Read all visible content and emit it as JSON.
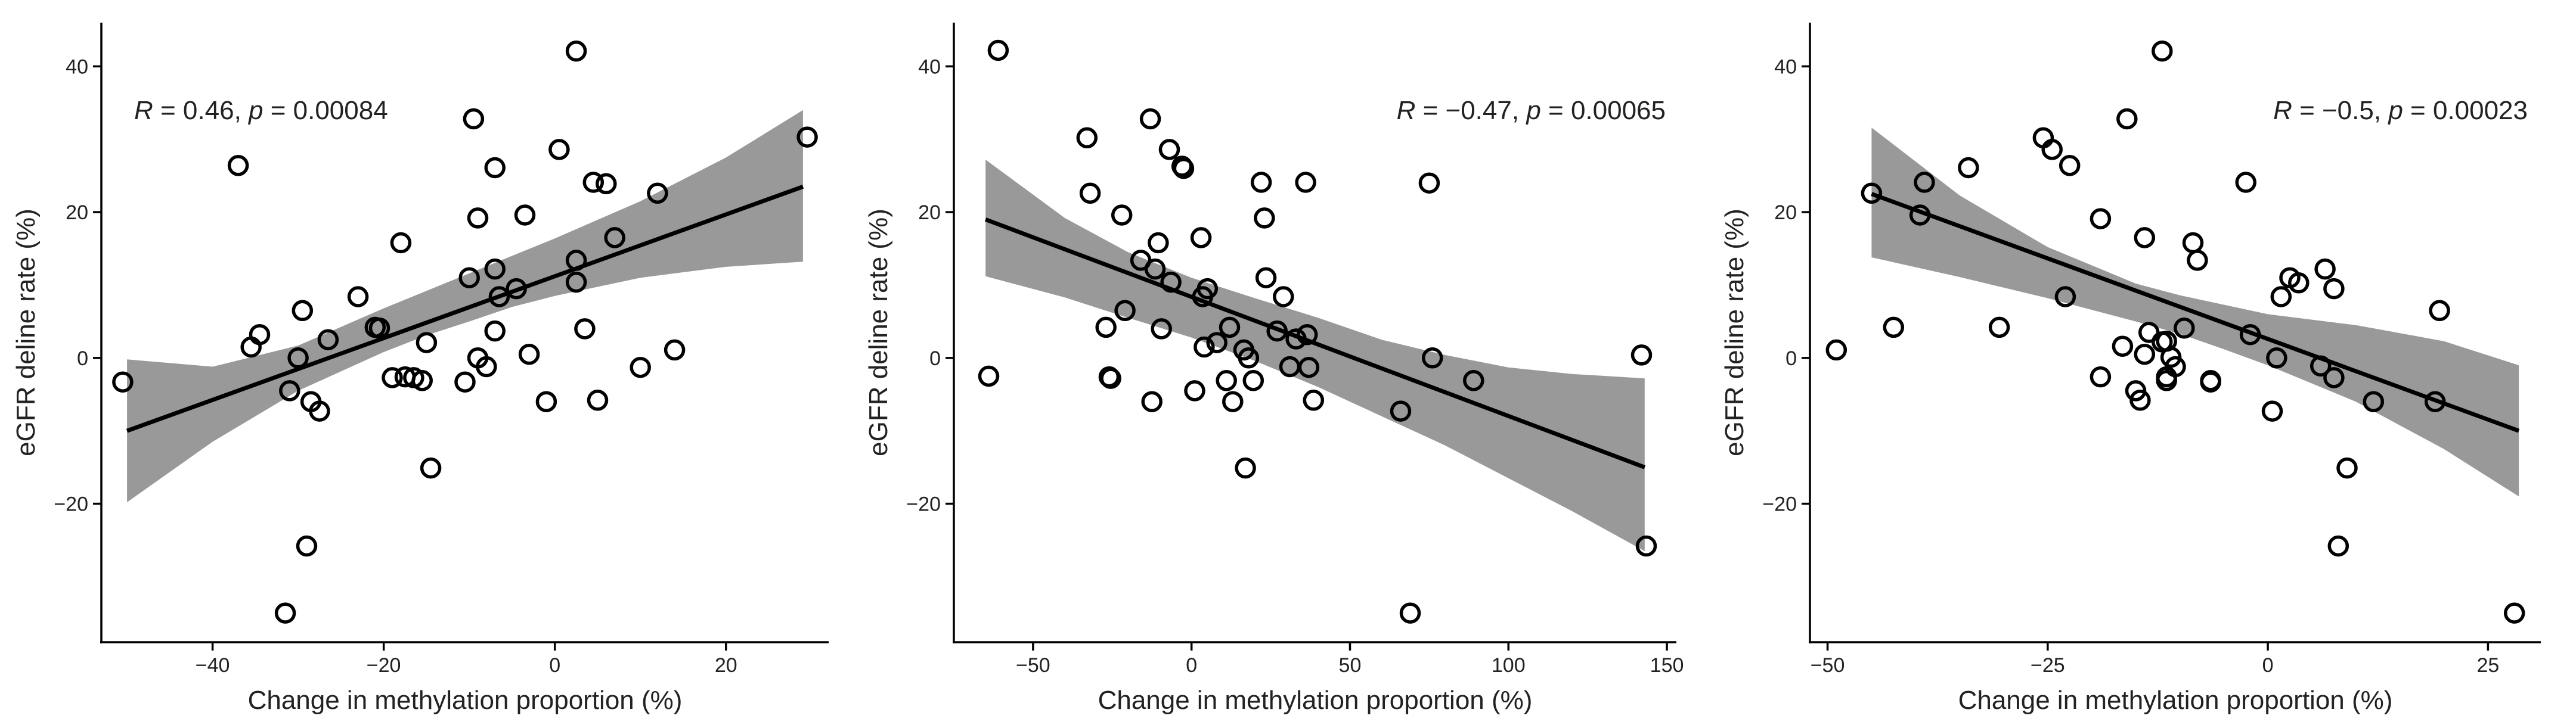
{
  "colors": {
    "band": "#999999",
    "line": "#000000",
    "point_stroke": "#000000",
    "background": "#ffffff"
  },
  "chart_data": [
    {
      "type": "scatter",
      "xlabel": "Change in methylation proportion (%)",
      "ylabel": "eGFR deline rate (%)",
      "annotation": {
        "R": "0.46",
        "p": "0.00084"
      },
      "xlim": [
        -53,
        32
      ],
      "ylim": [
        -39,
        46
      ],
      "xticks": [
        -40,
        -20,
        0,
        20
      ],
      "yticks": [
        -20,
        0,
        20,
        40
      ],
      "xtick_labels": [
        "−40",
        "−20",
        "0",
        "20"
      ],
      "ytick_labels": [
        "−20",
        "0",
        "20",
        "40"
      ],
      "fit": {
        "x0": -50,
        "y0": -10,
        "x1": 29,
        "y1": 23.5
      },
      "band": [
        [
          -50,
          -19.8
        ],
        [
          -40,
          -11.5
        ],
        [
          -30,
          -4.5
        ],
        [
          -20,
          0.8
        ],
        [
          -15,
          3.1
        ],
        [
          -10,
          5
        ],
        [
          -5,
          7
        ],
        [
          0,
          8.5
        ],
        [
          10,
          11
        ],
        [
          20,
          12.5
        ],
        [
          29,
          13.2
        ],
        [
          29,
          34
        ],
        [
          20,
          27.5
        ],
        [
          10,
          21.5
        ],
        [
          0,
          16.4
        ],
        [
          -5,
          14
        ],
        [
          -10,
          11.6
        ],
        [
          -15,
          9.2
        ],
        [
          -20,
          6.8
        ],
        [
          -30,
          1.7
        ],
        [
          -40,
          -1.2
        ],
        [
          -50,
          -0.2
        ]
      ],
      "points": [
        {
          "x": -50.5,
          "y": -3.3
        },
        {
          "x": -37,
          "y": 26.4
        },
        {
          "x": -35.5,
          "y": 1.5
        },
        {
          "x": -34.5,
          "y": 3.2
        },
        {
          "x": -31.5,
          "y": -35
        },
        {
          "x": -31,
          "y": -4.5
        },
        {
          "x": -30,
          "y": 0
        },
        {
          "x": -29.5,
          "y": 6.5
        },
        {
          "x": -29,
          "y": -25.8
        },
        {
          "x": -28.5,
          "y": -6
        },
        {
          "x": -27.5,
          "y": -7.3
        },
        {
          "x": -26.5,
          "y": 2.5
        },
        {
          "x": -23,
          "y": 8.4
        },
        {
          "x": -21,
          "y": 4.2
        },
        {
          "x": -20.5,
          "y": 4.1
        },
        {
          "x": -19,
          "y": -2.7
        },
        {
          "x": -18,
          "y": 15.8
        },
        {
          "x": -17.5,
          "y": -2.6
        },
        {
          "x": -16.5,
          "y": -2.7
        },
        {
          "x": -15.5,
          "y": -3.1
        },
        {
          "x": -15,
          "y": 2.1
        },
        {
          "x": -14.5,
          "y": -15.1
        },
        {
          "x": -10.5,
          "y": -3.3
        },
        {
          "x": -10,
          "y": 11
        },
        {
          "x": -9.5,
          "y": 32.8
        },
        {
          "x": -9,
          "y": 19.2
        },
        {
          "x": -9,
          "y": 0
        },
        {
          "x": -8,
          "y": -1.2
        },
        {
          "x": -7,
          "y": 12.2
        },
        {
          "x": -7,
          "y": 26.1
        },
        {
          "x": -7,
          "y": 3.7
        },
        {
          "x": -6.5,
          "y": 8.4
        },
        {
          "x": -4.5,
          "y": 9.5
        },
        {
          "x": -3.5,
          "y": 19.6
        },
        {
          "x": -3,
          "y": 0.5
        },
        {
          "x": -1,
          "y": -6
        },
        {
          "x": 0.5,
          "y": 28.6
        },
        {
          "x": 2.5,
          "y": 42.1
        },
        {
          "x": 2.5,
          "y": 13.4
        },
        {
          "x": 2.5,
          "y": 10.4
        },
        {
          "x": 3.5,
          "y": 4
        },
        {
          "x": 4.5,
          "y": 24.1
        },
        {
          "x": 5,
          "y": -5.8
        },
        {
          "x": 6,
          "y": 23.9
        },
        {
          "x": 7,
          "y": 16.5
        },
        {
          "x": 10,
          "y": -1.3
        },
        {
          "x": 12,
          "y": 22.6
        },
        {
          "x": 14,
          "y": 1.1
        },
        {
          "x": 29.5,
          "y": 30.3
        }
      ]
    },
    {
      "type": "scatter",
      "xlabel": "Change in methylation proportion (%)",
      "ylabel": "eGFR deline rate (%)",
      "annotation": {
        "R": "−0.47",
        "p": "0.00065"
      },
      "xlim": [
        -75,
        153
      ],
      "ylim": [
        -39,
        46
      ],
      "xticks": [
        -50,
        0,
        50,
        100,
        150
      ],
      "yticks": [
        -20,
        0,
        20,
        40
      ],
      "xtick_labels": [
        "−50",
        "0",
        "50",
        "100",
        "150"
      ],
      "ytick_labels": [
        "−20",
        "0",
        "20",
        "40"
      ],
      "fit": {
        "x0": -65,
        "y0": 19,
        "x1": 143,
        "y1": -15
      },
      "band": [
        [
          -65,
          11.2
        ],
        [
          -40,
          8.3
        ],
        [
          -20,
          5.5
        ],
        [
          0,
          2.8
        ],
        [
          20,
          -0.4
        ],
        [
          40,
          -4
        ],
        [
          60,
          -8
        ],
        [
          80,
          -12
        ],
        [
          100,
          -16.5
        ],
        [
          120,
          -21
        ],
        [
          143,
          -26.5
        ],
        [
          143,
          -2.8
        ],
        [
          120,
          -2.2
        ],
        [
          100,
          -1.3
        ],
        [
          80,
          0.4
        ],
        [
          60,
          2.5
        ],
        [
          40,
          5.5
        ],
        [
          20,
          8.2
        ],
        [
          0,
          11
        ],
        [
          -20,
          14.5
        ],
        [
          -40,
          19.2
        ],
        [
          -65,
          27.2
        ]
      ],
      "points": [
        {
          "x": -64,
          "y": -2.5
        },
        {
          "x": -61,
          "y": 42.2
        },
        {
          "x": -33,
          "y": 30.2
        },
        {
          "x": -32,
          "y": 22.6
        },
        {
          "x": -27,
          "y": 4.2
        },
        {
          "x": -26,
          "y": -2.6
        },
        {
          "x": -25.5,
          "y": -2.8
        },
        {
          "x": -22,
          "y": 19.6
        },
        {
          "x": -21,
          "y": 6.5
        },
        {
          "x": -16,
          "y": 13.4
        },
        {
          "x": -13,
          "y": 32.8
        },
        {
          "x": -12.5,
          "y": -6
        },
        {
          "x": -11.5,
          "y": 12.2
        },
        {
          "x": -10.5,
          "y": 15.8
        },
        {
          "x": -9.5,
          "y": 4
        },
        {
          "x": -7,
          "y": 28.6
        },
        {
          "x": -6.5,
          "y": 10.4
        },
        {
          "x": -3,
          "y": 26.3
        },
        {
          "x": -2.5,
          "y": 26
        },
        {
          "x": 1,
          "y": -4.5
        },
        {
          "x": 3,
          "y": 16.5
        },
        {
          "x": 3.5,
          "y": 8.4
        },
        {
          "x": 4,
          "y": 1.5
        },
        {
          "x": 5,
          "y": 9.5
        },
        {
          "x": 8,
          "y": 2.1
        },
        {
          "x": 11,
          "y": -3.1
        },
        {
          "x": 12,
          "y": 4.2
        },
        {
          "x": 13,
          "y": -6
        },
        {
          "x": 16.5,
          "y": 1.1
        },
        {
          "x": 17,
          "y": -15.1
        },
        {
          "x": 18,
          "y": 0
        },
        {
          "x": 19.5,
          "y": -3.1
        },
        {
          "x": 22,
          "y": 24.1
        },
        {
          "x": 23,
          "y": 19.2
        },
        {
          "x": 23.5,
          "y": 11
        },
        {
          "x": 27,
          "y": 3.7
        },
        {
          "x": 29,
          "y": 8.4
        },
        {
          "x": 31,
          "y": -1.2
        },
        {
          "x": 33,
          "y": 2.6
        },
        {
          "x": 36,
          "y": 24.1
        },
        {
          "x": 36.5,
          "y": 3.2
        },
        {
          "x": 37,
          "y": -1.3
        },
        {
          "x": 38.5,
          "y": -5.8
        },
        {
          "x": 66,
          "y": -7.3
        },
        {
          "x": 69,
          "y": -35
        },
        {
          "x": 75,
          "y": 24
        },
        {
          "x": 76,
          "y": 0
        },
        {
          "x": 89,
          "y": -3.1
        },
        {
          "x": 142,
          "y": 0.4
        },
        {
          "x": 143.5,
          "y": -25.8
        }
      ]
    },
    {
      "type": "scatter",
      "xlabel": "Change in methylation proportion (%)",
      "ylabel": "eGFR deline rate (%)",
      "annotation": {
        "R": "−0.5",
        "p": "0.00023"
      },
      "xlim": [
        -52,
        31
      ],
      "ylim": [
        -39,
        46
      ],
      "xticks": [
        -50,
        -25,
        0,
        25
      ],
      "yticks": [
        -20,
        0,
        20,
        40
      ],
      "xtick_labels": [
        "−50",
        "−25",
        "0",
        "25"
      ],
      "ytick_labels": [
        "−20",
        "0",
        "20",
        "40"
      ],
      "fit": {
        "x0": -45,
        "y0": 22.5,
        "x1": 28.5,
        "y1": -10
      },
      "band": [
        [
          -45,
          13.8
        ],
        [
          -35,
          11.1
        ],
        [
          -25,
          8.2
        ],
        [
          -15,
          5
        ],
        [
          -10,
          3.3
        ],
        [
          -5,
          1.2
        ],
        [
          0,
          -1
        ],
        [
          10,
          -6
        ],
        [
          20,
          -12.5
        ],
        [
          28.5,
          -19
        ],
        [
          28.5,
          -1
        ],
        [
          20,
          2.3
        ],
        [
          10,
          4.5
        ],
        [
          0,
          6
        ],
        [
          -5,
          7.3
        ],
        [
          -10,
          8.6
        ],
        [
          -15,
          10.2
        ],
        [
          -25,
          15.2
        ],
        [
          -35,
          22.3
        ],
        [
          -45,
          31.6
        ]
      ],
      "points": [
        {
          "x": -49,
          "y": 1.1
        },
        {
          "x": -45,
          "y": 22.6
        },
        {
          "x": -42.5,
          "y": 4.2
        },
        {
          "x": -39.5,
          "y": 19.6
        },
        {
          "x": -39,
          "y": 24.1
        },
        {
          "x": -34,
          "y": 26.1
        },
        {
          "x": -30.5,
          "y": 4.2
        },
        {
          "x": -25.5,
          "y": 30.2
        },
        {
          "x": -24.5,
          "y": 28.6
        },
        {
          "x": -23,
          "y": 8.4
        },
        {
          "x": -22.5,
          "y": 26.4
        },
        {
          "x": -19,
          "y": 19.1
        },
        {
          "x": -19,
          "y": -2.6
        },
        {
          "x": -16.5,
          "y": 1.6
        },
        {
          "x": -16,
          "y": 32.8
        },
        {
          "x": -15,
          "y": -4.5
        },
        {
          "x": -14.5,
          "y": -5.8
        },
        {
          "x": -14,
          "y": 16.5
        },
        {
          "x": -14,
          "y": 0.5
        },
        {
          "x": -13.5,
          "y": 3.5
        },
        {
          "x": -12,
          "y": 42.1
        },
        {
          "x": -12,
          "y": 2.2
        },
        {
          "x": -11.5,
          "y": 2.3
        },
        {
          "x": -11.5,
          "y": -2.6
        },
        {
          "x": -11.5,
          "y": -3.1
        },
        {
          "x": -11,
          "y": 0.1
        },
        {
          "x": -10.5,
          "y": -1.2
        },
        {
          "x": -9.5,
          "y": 4.1
        },
        {
          "x": -8.5,
          "y": 15.8
        },
        {
          "x": -8,
          "y": 13.4
        },
        {
          "x": -6.5,
          "y": -3.1
        },
        {
          "x": -6.5,
          "y": -3.3
        },
        {
          "x": -2.5,
          "y": 24.1
        },
        {
          "x": -2,
          "y": 3.2
        },
        {
          "x": 0.5,
          "y": -7.3
        },
        {
          "x": 1,
          "y": 0
        },
        {
          "x": 1.5,
          "y": 8.4
        },
        {
          "x": 2.5,
          "y": 11
        },
        {
          "x": 3.5,
          "y": 10.3
        },
        {
          "x": 6,
          "y": -1.1
        },
        {
          "x": 6.5,
          "y": 12.2
        },
        {
          "x": 7.5,
          "y": 9.5
        },
        {
          "x": 7.5,
          "y": -2.7
        },
        {
          "x": 8,
          "y": -25.8
        },
        {
          "x": 9,
          "y": -15.1
        },
        {
          "x": 12,
          "y": -6
        },
        {
          "x": 19,
          "y": -6
        },
        {
          "x": 19.5,
          "y": 6.5
        },
        {
          "x": 28,
          "y": -35
        }
      ]
    }
  ]
}
